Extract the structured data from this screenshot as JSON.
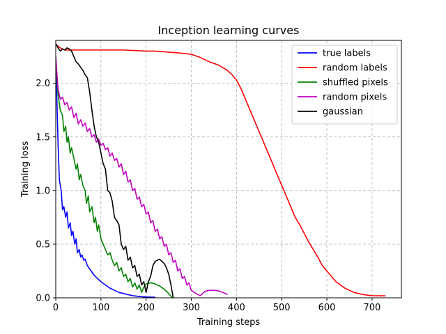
{
  "chart_data": {
    "type": "line",
    "title": "Inception learning curves",
    "xlabel": "Training steps",
    "ylabel": "Training loss",
    "xlim": [
      0,
      765
    ],
    "ylim": [
      0,
      2.4
    ],
    "xticks": [
      0,
      100,
      200,
      300,
      400,
      500,
      600,
      700
    ],
    "yticks": [
      0.0,
      0.5,
      1.0,
      1.5,
      2.0
    ],
    "grid": true,
    "grid_style": "dashed",
    "legend_position": "upper right",
    "series": [
      {
        "name": "true labels",
        "color": "#0000ff",
        "x": [
          0,
          5,
          8,
          12,
          15,
          18,
          22,
          25,
          28,
          32,
          35,
          38,
          42,
          45,
          48,
          52,
          55,
          58,
          62,
          65,
          70,
          75,
          80,
          85,
          90,
          95,
          100,
          110,
          120,
          130,
          140,
          150,
          160,
          170,
          180,
          190,
          200,
          210,
          220
        ],
        "values": [
          2.25,
          1.45,
          1.1,
          1.0,
          0.82,
          0.85,
          0.75,
          0.8,
          0.65,
          0.7,
          0.58,
          0.62,
          0.5,
          0.55,
          0.42,
          0.45,
          0.38,
          0.4,
          0.35,
          0.36,
          0.3,
          0.27,
          0.24,
          0.21,
          0.19,
          0.17,
          0.15,
          0.12,
          0.09,
          0.07,
          0.05,
          0.04,
          0.03,
          0.02,
          0.015,
          0.01,
          0.008,
          0.006,
          0.005
        ]
      },
      {
        "name": "random labels",
        "color": "#ff0000",
        "x": [
          0,
          10,
          20,
          40,
          60,
          100,
          150,
          200,
          220,
          250,
          280,
          300,
          320,
          340,
          360,
          380,
          390,
          400,
          410,
          420,
          430,
          440,
          450,
          460,
          470,
          480,
          490,
          500,
          510,
          520,
          530,
          540,
          550,
          560,
          570,
          580,
          590,
          600,
          610,
          620,
          630,
          640,
          650,
          660,
          670,
          680,
          700,
          730
        ],
        "values": [
          2.36,
          2.33,
          2.31,
          2.31,
          2.31,
          2.31,
          2.31,
          2.3,
          2.3,
          2.29,
          2.28,
          2.27,
          2.24,
          2.2,
          2.17,
          2.12,
          2.08,
          2.03,
          1.95,
          1.85,
          1.75,
          1.65,
          1.55,
          1.45,
          1.35,
          1.25,
          1.15,
          1.05,
          0.95,
          0.85,
          0.75,
          0.68,
          0.6,
          0.52,
          0.45,
          0.38,
          0.3,
          0.25,
          0.2,
          0.15,
          0.12,
          0.09,
          0.07,
          0.05,
          0.04,
          0.03,
          0.02,
          0.018
        ]
      },
      {
        "name": "shuffled pixels",
        "color": "#008000",
        "x": [
          0,
          5,
          10,
          15,
          18,
          22,
          25,
          28,
          32,
          35,
          40,
          45,
          48,
          52,
          55,
          60,
          65,
          68,
          72,
          75,
          80,
          85,
          88,
          92,
          95,
          100,
          105,
          110,
          115,
          120,
          125,
          130,
          135,
          140,
          145,
          150,
          155,
          160,
          165,
          170,
          175,
          180,
          185,
          190,
          195,
          200,
          210,
          220,
          230,
          240,
          250,
          258
        ],
        "values": [
          2.2,
          1.9,
          1.75,
          1.7,
          1.55,
          1.6,
          1.45,
          1.5,
          1.35,
          1.4,
          1.3,
          1.2,
          1.25,
          1.1,
          1.15,
          1.05,
          1.0,
          0.88,
          0.95,
          0.8,
          0.85,
          0.7,
          0.75,
          0.62,
          0.68,
          0.55,
          0.5,
          0.45,
          0.4,
          0.42,
          0.35,
          0.3,
          0.33,
          0.25,
          0.28,
          0.2,
          0.22,
          0.15,
          0.18,
          0.1,
          0.14,
          0.08,
          0.12,
          0.05,
          0.1,
          0.13,
          0.14,
          0.13,
          0.11,
          0.08,
          0.04,
          0.0
        ]
      },
      {
        "name": "random pixels",
        "color": "#bf00bf",
        "x": [
          0,
          5,
          10,
          15,
          20,
          25,
          30,
          35,
          40,
          45,
          50,
          55,
          60,
          65,
          70,
          75,
          80,
          85,
          90,
          95,
          100,
          105,
          110,
          115,
          120,
          125,
          130,
          135,
          140,
          145,
          150,
          155,
          160,
          165,
          170,
          175,
          180,
          185,
          190,
          195,
          200,
          205,
          210,
          215,
          220,
          225,
          230,
          235,
          240,
          245,
          250,
          255,
          260,
          265,
          270,
          275,
          280,
          285,
          290,
          295,
          300,
          310,
          320,
          330,
          340,
          350,
          360,
          370,
          380
        ],
        "values": [
          2.25,
          1.95,
          1.85,
          1.87,
          1.8,
          1.82,
          1.75,
          1.78,
          1.68,
          1.72,
          1.62,
          1.66,
          1.6,
          1.63,
          1.55,
          1.58,
          1.5,
          1.52,
          1.45,
          1.48,
          1.42,
          1.44,
          1.38,
          1.4,
          1.32,
          1.35,
          1.28,
          1.3,
          1.22,
          1.25,
          1.15,
          1.18,
          1.08,
          1.1,
          1.0,
          1.02,
          0.92,
          0.94,
          0.85,
          0.87,
          0.78,
          0.8,
          0.7,
          0.72,
          0.62,
          0.64,
          0.55,
          0.57,
          0.48,
          0.5,
          0.4,
          0.42,
          0.33,
          0.35,
          0.25,
          0.27,
          0.18,
          0.2,
          0.12,
          0.14,
          0.07,
          0.04,
          0.02,
          0.06,
          0.07,
          0.07,
          0.065,
          0.05,
          0.03
        ]
      },
      {
        "name": "gaussian",
        "color": "#000000",
        "x": [
          0,
          5,
          10,
          15,
          20,
          25,
          30,
          35,
          40,
          45,
          50,
          55,
          60,
          65,
          70,
          75,
          80,
          85,
          90,
          95,
          100,
          105,
          110,
          115,
          120,
          125,
          130,
          135,
          140,
          145,
          150,
          155,
          160,
          165,
          170,
          175,
          180,
          185,
          190,
          195,
          200,
          205,
          210,
          215,
          220,
          225,
          230,
          235,
          240,
          245,
          250,
          255,
          260
        ],
        "values": [
          2.37,
          2.33,
          2.3,
          2.32,
          2.31,
          2.33,
          2.32,
          2.3,
          2.25,
          2.2,
          2.18,
          2.15,
          2.12,
          2.08,
          2.05,
          1.92,
          1.75,
          1.6,
          1.5,
          1.45,
          1.35,
          1.25,
          1.2,
          1.0,
          0.98,
          0.9,
          0.75,
          0.72,
          0.68,
          0.5,
          0.45,
          0.48,
          0.35,
          0.38,
          0.28,
          0.3,
          0.2,
          0.22,
          0.12,
          0.15,
          0.05,
          0.15,
          0.2,
          0.3,
          0.34,
          0.35,
          0.36,
          0.34,
          0.32,
          0.28,
          0.22,
          0.12,
          0.0
        ]
      }
    ]
  }
}
